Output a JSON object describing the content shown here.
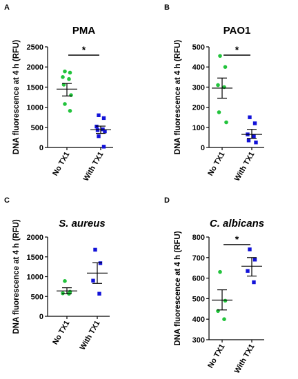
{
  "chart_data": [
    {
      "panel": "A",
      "type": "scatter",
      "title": "PMA",
      "title_italic": false,
      "ylabel": "DNA fluorescence at 4 h (RFU)",
      "categories": [
        "No TX1",
        "With TX1"
      ],
      "ylim": [
        0,
        2500
      ],
      "yticks": [
        0,
        500,
        1000,
        1500,
        2000,
        2500
      ],
      "series": [
        {
          "values": [
            1890,
            1860,
            1750,
            1700,
            1560,
            1300,
            1080,
            910
          ],
          "mean": 1450,
          "sem_low": 1280,
          "sem_high": 1590,
          "color": "#22c33c",
          "marker": "circle"
        },
        {
          "values": [
            800,
            730,
            520,
            450,
            430,
            400,
            280,
            20
          ],
          "mean": 440,
          "sem_low": 350,
          "sem_high": 530,
          "color": "#1212d8",
          "marker": "square"
        }
      ],
      "significance": "*"
    },
    {
      "panel": "B",
      "type": "scatter",
      "title": "PAO1",
      "title_italic": false,
      "ylabel": "DNA fluorescence at 4 h (RFU)",
      "categories": [
        "No TX1",
        "With TX1"
      ],
      "ylim": [
        0,
        500
      ],
      "yticks": [
        0,
        100,
        200,
        300,
        400,
        500
      ],
      "series": [
        {
          "values": [
            455,
            400,
            310,
            300,
            175,
            125
          ],
          "mean": 295,
          "sem_low": 245,
          "sem_high": 345,
          "color": "#22c33c",
          "marker": "circle"
        },
        {
          "values": [
            150,
            120,
            65,
            55,
            35,
            25
          ],
          "mean": 65,
          "sem_low": 45,
          "sem_high": 90,
          "color": "#1212d8",
          "marker": "square"
        }
      ],
      "significance": "*"
    },
    {
      "panel": "C",
      "type": "scatter",
      "title": "S. aureus",
      "title_italic": true,
      "ylabel": "DNA fluorescence at 4 h (RFU)",
      "categories": [
        "No TX1",
        "With TX1"
      ],
      "ylim": [
        0,
        2000
      ],
      "yticks": [
        0,
        500,
        1000,
        1500,
        2000
      ],
      "series": [
        {
          "values": [
            890,
            620,
            580,
            570
          ],
          "mean": 640,
          "sem_low": 570,
          "sem_high": 720,
          "color": "#22c33c",
          "marker": "circle"
        },
        {
          "values": [
            1680,
            1340,
            900,
            570
          ],
          "mean": 1090,
          "sem_low": 830,
          "sem_high": 1350,
          "color": "#1212d8",
          "marker": "square"
        }
      ],
      "significance": ""
    },
    {
      "panel": "D",
      "type": "scatter",
      "title": "C. albicans",
      "title_italic": true,
      "ylabel": "DNA fluorescence at 4 h (RFU)",
      "categories": [
        "No TX1",
        "With TX1"
      ],
      "ylim": [
        300,
        800
      ],
      "yticks": [
        300,
        400,
        500,
        600,
        700,
        800
      ],
      "series": [
        {
          "values": [
            630,
            490,
            440,
            400
          ],
          "mean": 493,
          "sem_low": 445,
          "sem_high": 543,
          "color": "#22c33c",
          "marker": "circle"
        },
        {
          "values": [
            740,
            690,
            635,
            580
          ],
          "mean": 658,
          "sem_low": 610,
          "sem_high": 700,
          "color": "#1212d8",
          "marker": "square"
        }
      ],
      "significance": "*"
    }
  ]
}
